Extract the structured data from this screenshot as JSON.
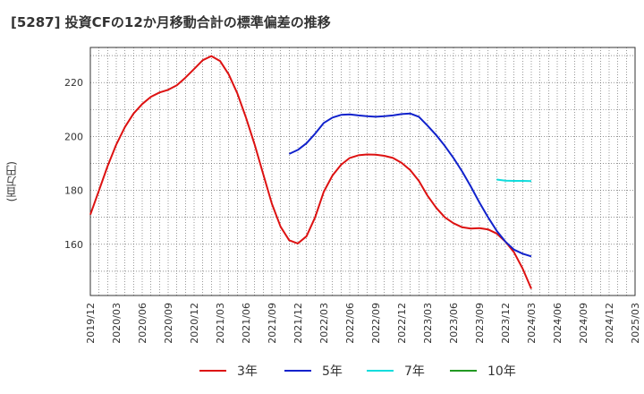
{
  "chart_data": {
    "type": "line",
    "title": "[5287]  投資CFの12か月移動合計の標準偏差の推移",
    "ylabel": "(百万円)",
    "xlabel": "",
    "ylim": [
      141,
      233
    ],
    "yticks": [
      160,
      180,
      200,
      220
    ],
    "xticks": [
      "2019/12",
      "2020/03",
      "2020/06",
      "2020/09",
      "2020/12",
      "2021/03",
      "2021/06",
      "2021/09",
      "2021/12",
      "2022/03",
      "2022/06",
      "2022/09",
      "2022/12",
      "2023/03",
      "2023/06",
      "2023/09",
      "2023/12",
      "2024/03",
      "2024/06",
      "2024/09",
      "2024/12",
      "2025/03"
    ],
    "grid": true,
    "legend_position": "bottom",
    "x_start": "2019/12",
    "series": [
      {
        "name": "3年",
        "color": "#dd1111",
        "values": [
          171,
          180,
          189,
          197,
          203.5,
          208.5,
          212,
          214.7,
          216.3,
          217.3,
          219,
          221.8,
          225,
          228.3,
          229.8,
          228,
          223,
          216,
          207,
          197,
          186,
          175,
          166.5,
          161.5,
          160.3,
          163,
          170,
          179.5,
          185.5,
          189.5,
          192,
          193,
          193.3,
          193.2,
          192.8,
          192,
          190.2,
          187.5,
          183.5,
          178,
          173.5,
          170,
          167.8,
          166.3,
          165.8,
          166,
          165.5,
          164,
          161,
          157,
          151,
          143.5
        ]
      },
      {
        "name": "5年",
        "color": "#1122cc",
        "values": [
          null,
          null,
          null,
          null,
          null,
          null,
          null,
          null,
          null,
          null,
          null,
          null,
          null,
          null,
          null,
          null,
          null,
          null,
          null,
          null,
          null,
          null,
          null,
          193.5,
          195,
          197.5,
          201,
          205,
          207,
          208,
          208.2,
          207.8,
          207.5,
          207.3,
          207.5,
          207.8,
          208.3,
          208.5,
          207.3,
          204,
          200.5,
          196.5,
          192,
          187,
          181.5,
          175.5,
          170,
          165,
          161,
          158,
          156.5,
          155.5
        ]
      },
      {
        "name": "7年",
        "color": "#11dddd",
        "values": [
          null,
          null,
          null,
          null,
          null,
          null,
          null,
          null,
          null,
          null,
          null,
          null,
          null,
          null,
          null,
          null,
          null,
          null,
          null,
          null,
          null,
          null,
          null,
          null,
          null,
          null,
          null,
          null,
          null,
          null,
          null,
          null,
          null,
          null,
          null,
          null,
          null,
          null,
          null,
          null,
          null,
          null,
          null,
          null,
          null,
          null,
          null,
          184,
          183.6,
          183.5,
          183.5,
          183.4
        ]
      },
      {
        "name": "10年",
        "color": "#229922",
        "values": []
      }
    ]
  }
}
